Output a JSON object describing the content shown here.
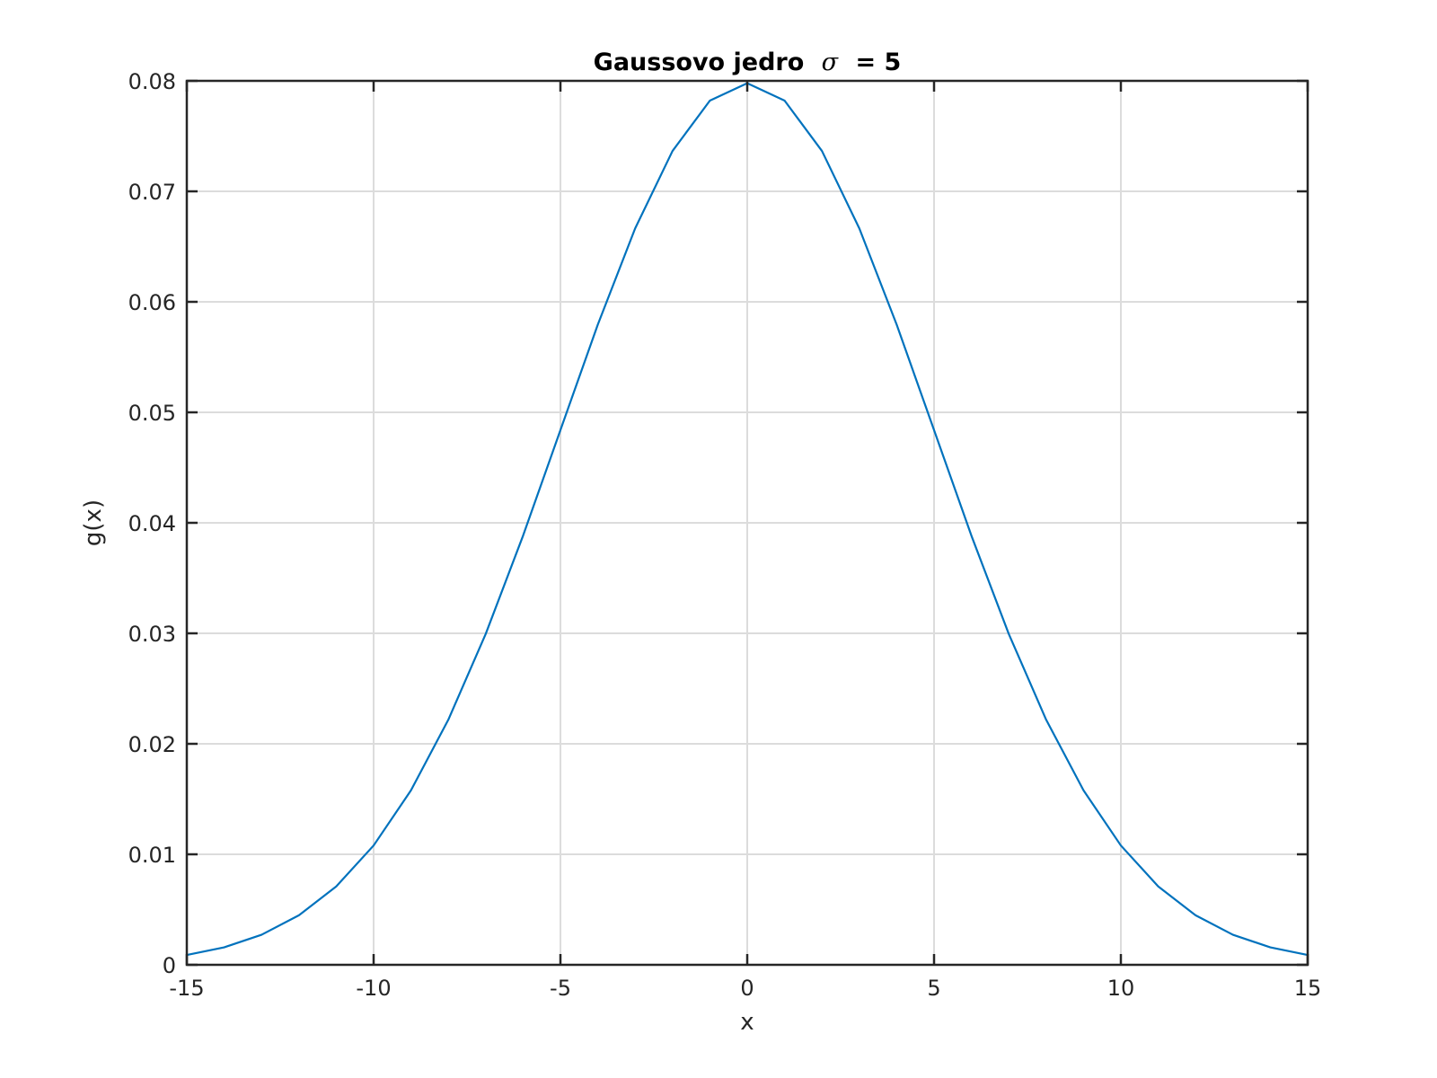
{
  "chart_data": {
    "type": "line",
    "title_prefix": "Gaussovo jedro",
    "title_symbol": "σ",
    "title_suffix": "= 5",
    "xlabel": "x",
    "ylabel": "g(x)",
    "xlim": [
      -15,
      15
    ],
    "ylim": [
      0,
      0.08
    ],
    "grid": true,
    "line_color": "#0072BD",
    "x_ticks": [
      -15,
      -10,
      -5,
      0,
      5,
      10,
      15
    ],
    "x_tick_labels": [
      "-15",
      "-10",
      "-5",
      "0",
      "5",
      "10",
      "15"
    ],
    "y_ticks": [
      0,
      0.01,
      0.02,
      0.03,
      0.04,
      0.05,
      0.06,
      0.07,
      0.08
    ],
    "y_tick_labels": [
      "0",
      "0.01",
      "0.02",
      "0.03",
      "0.04",
      "0.05",
      "0.06",
      "0.07",
      "0.08"
    ],
    "series": [
      {
        "x": [
          -15,
          -14,
          -13,
          -12,
          -11,
          -10,
          -9,
          -8,
          -7,
          -6,
          -5,
          -4,
          -3,
          -2,
          -1,
          0,
          1,
          2,
          3,
          4,
          5,
          6,
          7,
          8,
          9,
          10,
          11,
          12,
          13,
          14,
          15
        ],
        "values": [
          0.000886,
          0.001583,
          0.002717,
          0.004479,
          0.007094,
          0.010798,
          0.01579,
          0.022184,
          0.029945,
          0.038837,
          0.048394,
          0.057938,
          0.066645,
          0.073654,
          0.078209,
          0.079788,
          0.078209,
          0.073654,
          0.066645,
          0.057938,
          0.048394,
          0.038837,
          0.029945,
          0.022184,
          0.01579,
          0.010798,
          0.007094,
          0.004479,
          0.002717,
          0.001583,
          0.000886
        ]
      }
    ]
  }
}
